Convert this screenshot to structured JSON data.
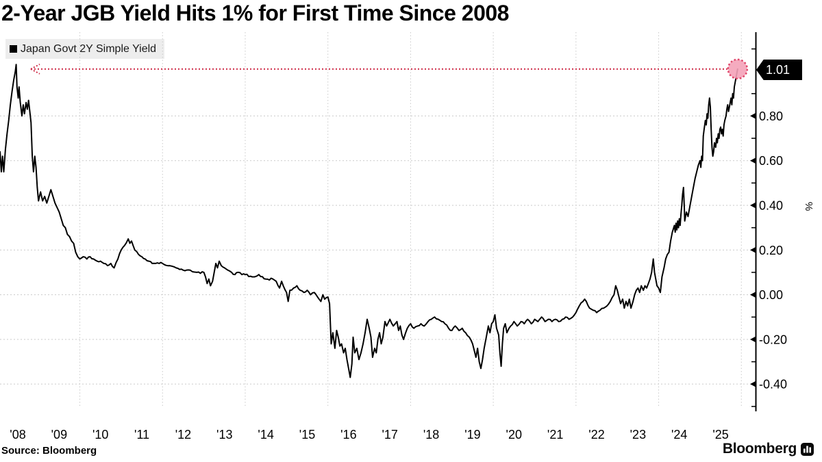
{
  "title": "2-Year JGB Yield Hits 1% for First Time Since 2008",
  "legend": {
    "label": "Japan Govt 2Y Simple Yield",
    "swatch_color": "#000000"
  },
  "source": "Source: Bloomberg",
  "branding": {
    "wordmark": "Bloomberg",
    "icon": "bar-chart-icon"
  },
  "annotation": {
    "value_label": "1.01",
    "level": 1.01,
    "line_color": "#cf2e49",
    "marker_fill": "#f4a2b8",
    "marker_stroke": "#e0466a",
    "tag_bg": "#000000",
    "tag_text_color": "#ffffff"
  },
  "chart_data": {
    "type": "line",
    "title": "2-Year JGB Yield Hits 1% for First Time Since 2008",
    "series_name": "Japan Govt 2Y Simple Yield",
    "unit": "%",
    "line_color": "#000000",
    "grid_on": true,
    "grid_color": "#c9c9c9",
    "legend_position": "top-left",
    "xlim": [
      2008.069,
      2026.352
    ],
    "ylim": [
      -0.522,
      1.175
    ],
    "x_tick_years": [
      2008,
      2009,
      2010,
      2011,
      2012,
      2013,
      2014,
      2015,
      2016,
      2017,
      2018,
      2019,
      2020,
      2021,
      2022,
      2023,
      2024,
      2025
    ],
    "x_tick_labels": [
      "'08",
      "'09",
      "'10",
      "'11",
      "'12",
      "'13",
      "'14",
      "'15",
      "'16",
      "'17",
      "'18",
      "'19",
      "'20",
      "'21",
      "'22",
      "'23",
      "'24",
      "'25"
    ],
    "grid_vertical_years": [
      2010,
      2012,
      2014,
      2016,
      2018,
      2020,
      2022,
      2024,
      2026
    ],
    "y_tick_values": [
      0.8,
      0.6,
      0.4,
      0.2,
      0.0,
      -0.2,
      -0.4
    ],
    "y_tick_labels": [
      "0.80",
      "0.60",
      "0.40",
      "0.20",
      "0.00",
      "-0.20",
      "-0.40"
    ],
    "y_minor_ticks": [
      1.1,
      0.9,
      0.7,
      0.5,
      0.3,
      0.1,
      -0.1,
      -0.3,
      -0.5
    ],
    "last_point": {
      "x": 2025.91,
      "value": 1.01
    },
    "points": [
      [
        2008.07,
        0.64
      ],
      [
        2008.1,
        0.55
      ],
      [
        2008.13,
        0.62
      ],
      [
        2008.16,
        0.55
      ],
      [
        2008.2,
        0.65
      ],
      [
        2008.24,
        0.72
      ],
      [
        2008.28,
        0.78
      ],
      [
        2008.32,
        0.85
      ],
      [
        2008.36,
        0.91
      ],
      [
        2008.4,
        0.96
      ],
      [
        2008.44,
        1.0
      ],
      [
        2008.46,
        1.03
      ],
      [
        2008.48,
        0.93
      ],
      [
        2008.51,
        0.88
      ],
      [
        2008.53,
        0.93
      ],
      [
        2008.56,
        0.86
      ],
      [
        2008.6,
        0.8
      ],
      [
        2008.63,
        0.85
      ],
      [
        2008.66,
        0.81
      ],
      [
        2008.7,
        0.86
      ],
      [
        2008.73,
        0.83
      ],
      [
        2008.76,
        0.87
      ],
      [
        2008.79,
        0.82
      ],
      [
        2008.82,
        0.77
      ],
      [
        2008.85,
        0.62
      ],
      [
        2008.88,
        0.55
      ],
      [
        2008.91,
        0.62
      ],
      [
        2008.94,
        0.57
      ],
      [
        2008.97,
        0.48
      ],
      [
        2009.0,
        0.42
      ],
      [
        2009.05,
        0.46
      ],
      [
        2009.1,
        0.42
      ],
      [
        2009.15,
        0.44
      ],
      [
        2009.2,
        0.41
      ],
      [
        2009.25,
        0.44
      ],
      [
        2009.3,
        0.47
      ],
      [
        2009.35,
        0.44
      ],
      [
        2009.4,
        0.41
      ],
      [
        2009.45,
        0.39
      ],
      [
        2009.5,
        0.37
      ],
      [
        2009.55,
        0.34
      ],
      [
        2009.6,
        0.31
      ],
      [
        2009.65,
        0.3
      ],
      [
        2009.7,
        0.27
      ],
      [
        2009.75,
        0.26
      ],
      [
        2009.8,
        0.24
      ],
      [
        2009.85,
        0.23
      ],
      [
        2009.9,
        0.19
      ],
      [
        2009.95,
        0.17
      ],
      [
        2010.0,
        0.16
      ],
      [
        2010.08,
        0.17
      ],
      [
        2010.17,
        0.16
      ],
      [
        2010.25,
        0.17
      ],
      [
        2010.33,
        0.16
      ],
      [
        2010.42,
        0.15
      ],
      [
        2010.5,
        0.15
      ],
      [
        2010.58,
        0.14
      ],
      [
        2010.67,
        0.13
      ],
      [
        2010.75,
        0.14
      ],
      [
        2010.83,
        0.12
      ],
      [
        2010.92,
        0.16
      ],
      [
        2011.0,
        0.2
      ],
      [
        2011.08,
        0.22
      ],
      [
        2011.17,
        0.25
      ],
      [
        2011.21,
        0.23
      ],
      [
        2011.25,
        0.24
      ],
      [
        2011.33,
        0.2
      ],
      [
        2011.42,
        0.18
      ],
      [
        2011.5,
        0.17
      ],
      [
        2011.58,
        0.16
      ],
      [
        2011.67,
        0.15
      ],
      [
        2011.75,
        0.14
      ],
      [
        2011.83,
        0.14
      ],
      [
        2011.92,
        0.14
      ],
      [
        2012.0,
        0.14
      ],
      [
        2012.17,
        0.13
      ],
      [
        2012.33,
        0.12
      ],
      [
        2012.5,
        0.11
      ],
      [
        2012.67,
        0.11
      ],
      [
        2012.83,
        0.1
      ],
      [
        2013.0,
        0.1
      ],
      [
        2013.04,
        0.08
      ],
      [
        2013.08,
        0.05
      ],
      [
        2013.12,
        0.07
      ],
      [
        2013.16,
        0.04
      ],
      [
        2013.21,
        0.06
      ],
      [
        2013.25,
        0.1
      ],
      [
        2013.29,
        0.14
      ],
      [
        2013.33,
        0.12
      ],
      [
        2013.37,
        0.15
      ],
      [
        2013.42,
        0.13
      ],
      [
        2013.5,
        0.12
      ],
      [
        2013.58,
        0.11
      ],
      [
        2013.67,
        0.1
      ],
      [
        2013.75,
        0.09
      ],
      [
        2013.83,
        0.1
      ],
      [
        2013.92,
        0.09
      ],
      [
        2014.0,
        0.09
      ],
      [
        2014.17,
        0.08
      ],
      [
        2014.33,
        0.09
      ],
      [
        2014.5,
        0.07
      ],
      [
        2014.67,
        0.07
      ],
      [
        2014.75,
        0.06
      ],
      [
        2014.83,
        0.03
      ],
      [
        2014.88,
        0.06
      ],
      [
        2014.92,
        0.04
      ],
      [
        2015.0,
        0.01
      ],
      [
        2015.04,
        -0.03
      ],
      [
        2015.08,
        0.02
      ],
      [
        2015.17,
        0.03
      ],
      [
        2015.25,
        0.04
      ],
      [
        2015.33,
        0.02
      ],
      [
        2015.42,
        0.01
      ],
      [
        2015.5,
        0.02
      ],
      [
        2015.58,
        0.0
      ],
      [
        2015.67,
        0.01
      ],
      [
        2015.75,
        -0.01
      ],
      [
        2015.83,
        -0.03
      ],
      [
        2015.88,
        0.0
      ],
      [
        2015.92,
        -0.02
      ],
      [
        2016.0,
        -0.01
      ],
      [
        2016.04,
        -0.04
      ],
      [
        2016.08,
        -0.22
      ],
      [
        2016.12,
        -0.17
      ],
      [
        2016.17,
        -0.24
      ],
      [
        2016.21,
        -0.16
      ],
      [
        2016.25,
        -0.19
      ],
      [
        2016.29,
        -0.23
      ],
      [
        2016.33,
        -0.22
      ],
      [
        2016.38,
        -0.26
      ],
      [
        2016.42,
        -0.24
      ],
      [
        2016.46,
        -0.29
      ],
      [
        2016.5,
        -0.33
      ],
      [
        2016.54,
        -0.37
      ],
      [
        2016.58,
        -0.31
      ],
      [
        2016.61,
        -0.19
      ],
      [
        2016.65,
        -0.26
      ],
      [
        2016.7,
        -0.24
      ],
      [
        2016.75,
        -0.29
      ],
      [
        2016.8,
        -0.26
      ],
      [
        2016.85,
        -0.22
      ],
      [
        2016.9,
        -0.17
      ],
      [
        2016.95,
        -0.11
      ],
      [
        2017.0,
        -0.15
      ],
      [
        2017.04,
        -0.19
      ],
      [
        2017.08,
        -0.28
      ],
      [
        2017.13,
        -0.24
      ],
      [
        2017.17,
        -0.26
      ],
      [
        2017.21,
        -0.2
      ],
      [
        2017.25,
        -0.17
      ],
      [
        2017.29,
        -0.22
      ],
      [
        2017.33,
        -0.19
      ],
      [
        2017.38,
        -0.12
      ],
      [
        2017.42,
        -0.14
      ],
      [
        2017.5,
        -0.11
      ],
      [
        2017.58,
        -0.14
      ],
      [
        2017.67,
        -0.12
      ],
      [
        2017.71,
        -0.16
      ],
      [
        2017.75,
        -0.14
      ],
      [
        2017.79,
        -0.18
      ],
      [
        2017.83,
        -0.2
      ],
      [
        2017.88,
        -0.17
      ],
      [
        2017.92,
        -0.15
      ],
      [
        2018.0,
        -0.13
      ],
      [
        2018.08,
        -0.15
      ],
      [
        2018.17,
        -0.14
      ],
      [
        2018.25,
        -0.13
      ],
      [
        2018.33,
        -0.14
      ],
      [
        2018.42,
        -0.12
      ],
      [
        2018.5,
        -0.11
      ],
      [
        2018.58,
        -0.1
      ],
      [
        2018.67,
        -0.11
      ],
      [
        2018.75,
        -0.12
      ],
      [
        2018.83,
        -0.13
      ],
      [
        2018.92,
        -0.15
      ],
      [
        2019.0,
        -0.16
      ],
      [
        2019.08,
        -0.14
      ],
      [
        2019.17,
        -0.16
      ],
      [
        2019.25,
        -0.15
      ],
      [
        2019.33,
        -0.17
      ],
      [
        2019.42,
        -0.19
      ],
      [
        2019.5,
        -0.22
      ],
      [
        2019.54,
        -0.25
      ],
      [
        2019.58,
        -0.28
      ],
      [
        2019.62,
        -0.24
      ],
      [
        2019.66,
        -0.3
      ],
      [
        2019.7,
        -0.33
      ],
      [
        2019.74,
        -0.29
      ],
      [
        2019.78,
        -0.24
      ],
      [
        2019.83,
        -0.19
      ],
      [
        2019.88,
        -0.14
      ],
      [
        2019.92,
        -0.17
      ],
      [
        2019.96,
        -0.13
      ],
      [
        2020.0,
        -0.12
      ],
      [
        2020.04,
        -0.09
      ],
      [
        2020.08,
        -0.15
      ],
      [
        2020.13,
        -0.18
      ],
      [
        2020.16,
        -0.26
      ],
      [
        2020.19,
        -0.32
      ],
      [
        2020.22,
        -0.22
      ],
      [
        2020.25,
        -0.15
      ],
      [
        2020.29,
        -0.13
      ],
      [
        2020.33,
        -0.17
      ],
      [
        2020.38,
        -0.15
      ],
      [
        2020.42,
        -0.14
      ],
      [
        2020.5,
        -0.12
      ],
      [
        2020.58,
        -0.14
      ],
      [
        2020.67,
        -0.12
      ],
      [
        2020.75,
        -0.13
      ],
      [
        2020.83,
        -0.11
      ],
      [
        2020.92,
        -0.13
      ],
      [
        2021.0,
        -0.11
      ],
      [
        2021.08,
        -0.12
      ],
      [
        2021.17,
        -0.1
      ],
      [
        2021.25,
        -0.12
      ],
      [
        2021.33,
        -0.11
      ],
      [
        2021.42,
        -0.12
      ],
      [
        2021.5,
        -0.11
      ],
      [
        2021.58,
        -0.12
      ],
      [
        2021.67,
        -0.11
      ],
      [
        2021.75,
        -0.1
      ],
      [
        2021.83,
        -0.11
      ],
      [
        2021.92,
        -0.1
      ],
      [
        2022.0,
        -0.08
      ],
      [
        2022.08,
        -0.05
      ],
      [
        2022.17,
        -0.03
      ],
      [
        2022.21,
        -0.02
      ],
      [
        2022.25,
        -0.03
      ],
      [
        2022.33,
        -0.06
      ],
      [
        2022.42,
        -0.07
      ],
      [
        2022.5,
        -0.08
      ],
      [
        2022.58,
        -0.07
      ],
      [
        2022.67,
        -0.06
      ],
      [
        2022.75,
        -0.05
      ],
      [
        2022.83,
        -0.03
      ],
      [
        2022.92,
        0.0
      ],
      [
        2022.96,
        0.04
      ],
      [
        2023.0,
        0.02
      ],
      [
        2023.04,
        -0.01
      ],
      [
        2023.08,
        -0.04
      ],
      [
        2023.13,
        -0.02
      ],
      [
        2023.17,
        -0.06
      ],
      [
        2023.21,
        -0.03
      ],
      [
        2023.25,
        -0.05
      ],
      [
        2023.29,
        -0.02
      ],
      [
        2023.33,
        -0.06
      ],
      [
        2023.38,
        -0.03
      ],
      [
        2023.42,
        0.0
      ],
      [
        2023.46,
        0.02
      ],
      [
        2023.5,
        0.03
      ],
      [
        2023.54,
        0.01
      ],
      [
        2023.58,
        0.04
      ],
      [
        2023.63,
        0.02
      ],
      [
        2023.67,
        0.04
      ],
      [
        2023.71,
        0.03
      ],
      [
        2023.75,
        0.05
      ],
      [
        2023.79,
        0.07
      ],
      [
        2023.83,
        0.1
      ],
      [
        2023.87,
        0.16
      ],
      [
        2023.9,
        0.1
      ],
      [
        2023.93,
        0.07
      ],
      [
        2023.96,
        0.04
      ],
      [
        2024.0,
        0.03
      ],
      [
        2024.04,
        0.01
      ],
      [
        2024.08,
        0.08
      ],
      [
        2024.13,
        0.12
      ],
      [
        2024.17,
        0.16
      ],
      [
        2024.21,
        0.18
      ],
      [
        2024.25,
        0.19
      ],
      [
        2024.29,
        0.24
      ],
      [
        2024.33,
        0.28
      ],
      [
        2024.38,
        0.31
      ],
      [
        2024.4,
        0.28
      ],
      [
        2024.42,
        0.32
      ],
      [
        2024.44,
        0.29
      ],
      [
        2024.46,
        0.33
      ],
      [
        2024.48,
        0.3
      ],
      [
        2024.5,
        0.34
      ],
      [
        2024.52,
        0.31
      ],
      [
        2024.54,
        0.36
      ],
      [
        2024.56,
        0.4
      ],
      [
        2024.58,
        0.45
      ],
      [
        2024.6,
        0.48
      ],
      [
        2024.62,
        0.39
      ],
      [
        2024.63,
        0.33
      ],
      [
        2024.67,
        0.37
      ],
      [
        2024.71,
        0.35
      ],
      [
        2024.75,
        0.39
      ],
      [
        2024.79,
        0.43
      ],
      [
        2024.83,
        0.47
      ],
      [
        2024.88,
        0.52
      ],
      [
        2024.92,
        0.55
      ],
      [
        2024.96,
        0.58
      ],
      [
        2025.0,
        0.6
      ],
      [
        2025.02,
        0.57
      ],
      [
        2025.04,
        0.62
      ],
      [
        2025.06,
        0.6
      ],
      [
        2025.08,
        0.71
      ],
      [
        2025.1,
        0.74
      ],
      [
        2025.13,
        0.78
      ],
      [
        2025.15,
        0.76
      ],
      [
        2025.17,
        0.81
      ],
      [
        2025.19,
        0.79
      ],
      [
        2025.21,
        0.85
      ],
      [
        2025.23,
        0.88
      ],
      [
        2025.25,
        0.84
      ],
      [
        2025.27,
        0.74
      ],
      [
        2025.29,
        0.66
      ],
      [
        2025.31,
        0.62
      ],
      [
        2025.33,
        0.64
      ],
      [
        2025.35,
        0.68
      ],
      [
        2025.38,
        0.66
      ],
      [
        2025.4,
        0.7
      ],
      [
        2025.42,
        0.68
      ],
      [
        2025.44,
        0.72
      ],
      [
        2025.46,
        0.7
      ],
      [
        2025.48,
        0.74
      ],
      [
        2025.5,
        0.75
      ],
      [
        2025.52,
        0.72
      ],
      [
        2025.54,
        0.74
      ],
      [
        2025.56,
        0.71
      ],
      [
        2025.58,
        0.76
      ],
      [
        2025.6,
        0.78
      ],
      [
        2025.63,
        0.8
      ],
      [
        2025.65,
        0.83
      ],
      [
        2025.67,
        0.85
      ],
      [
        2025.69,
        0.82
      ],
      [
        2025.71,
        0.84
      ],
      [
        2025.73,
        0.86
      ],
      [
        2025.75,
        0.88
      ],
      [
        2025.77,
        0.85
      ],
      [
        2025.79,
        0.9
      ],
      [
        2025.81,
        0.88
      ],
      [
        2025.83,
        0.93
      ],
      [
        2025.85,
        0.95
      ],
      [
        2025.87,
        0.97
      ],
      [
        2025.89,
        0.99
      ],
      [
        2025.91,
        1.01
      ]
    ]
  }
}
